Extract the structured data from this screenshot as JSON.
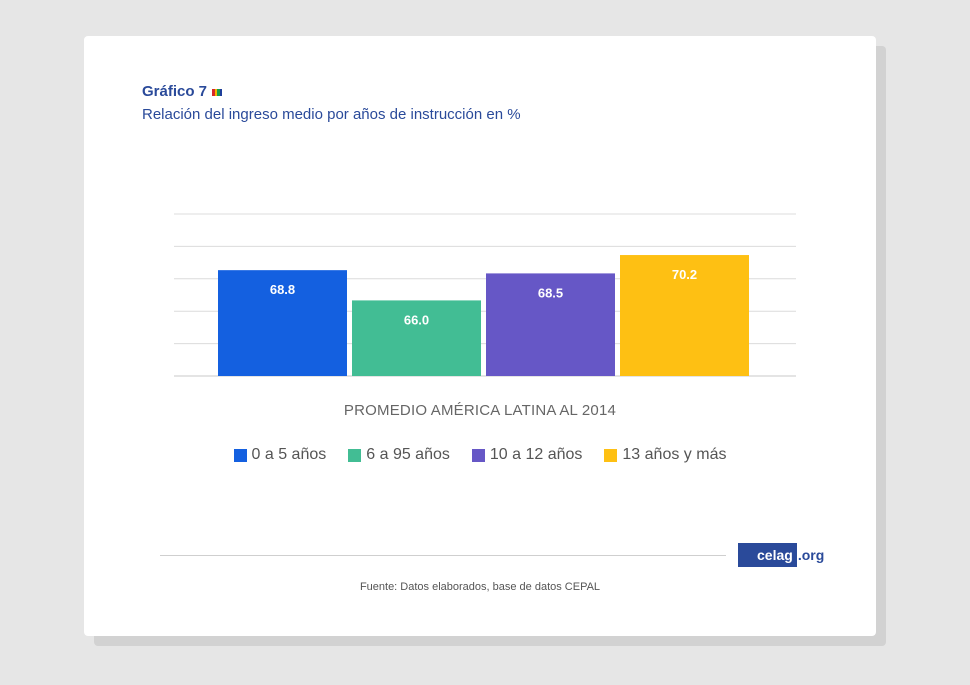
{
  "header": {
    "title": "Gráfico 7",
    "subtitle": "Relación del ingreso medio por años de instrucción en %"
  },
  "colors": {
    "flag": [
      "#d62828",
      "#f4b400",
      "#1a9b4a",
      "#1f3f9a"
    ]
  },
  "chart_data": {
    "type": "bar",
    "categories": [
      "PROMEDIO AMÉRICA LATINA AL 2014"
    ],
    "series": [
      {
        "name": "0 a 5 años",
        "values": [
          68.8
        ],
        "label": "68.8",
        "color": "#1460e0"
      },
      {
        "name": "6 a 95 años",
        "values": [
          66.0
        ],
        "label": "66.0",
        "color": "#42bd94"
      },
      {
        "name": "10 a 12 años",
        "values": [
          68.5
        ],
        "label": "68.5",
        "color": "#6657c6"
      },
      {
        "name": "13 años y más",
        "values": [
          70.2
        ],
        "label": "70.2",
        "color": "#fec013"
      }
    ],
    "xlabel": "PROMEDIO AMÉRICA LATINA AL 2014",
    "ylim": [
      59,
      74
    ],
    "gridlines": 6,
    "legend_position": "bottom"
  },
  "footer": {
    "logo_main": "celag",
    "logo_ext": ".org",
    "source": "Fuente: Datos elaborados, base de datos CEPAL"
  }
}
